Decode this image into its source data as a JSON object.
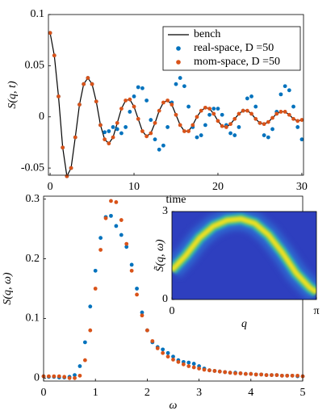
{
  "chart_data": [
    {
      "type": "line",
      "xlabel": "time",
      "ylabel": "S(q, t)",
      "xlim": [
        -0.2,
        30.2
      ],
      "ylim": [
        -0.057,
        0.1
      ],
      "xticks": [
        0,
        10,
        20,
        30
      ],
      "yticks": [
        -0.05,
        0,
        0.05,
        0.1
      ],
      "legend": "northeast",
      "x": [
        0,
        0.5,
        1,
        1.5,
        2,
        2.5,
        3,
        3.5,
        4,
        4.5,
        5,
        5.5,
        6,
        6.5,
        7,
        7.5,
        8,
        8.5,
        9,
        9.5,
        10,
        10.5,
        11,
        11.5,
        12,
        12.5,
        13,
        13.5,
        14,
        14.5,
        15,
        15.5,
        16,
        16.5,
        17,
        17.5,
        18,
        18.5,
        19,
        19.5,
        20,
        20.5,
        21,
        21.5,
        22,
        22.5,
        23,
        23.5,
        24,
        24.5,
        25,
        25.5,
        26,
        26.5,
        27,
        27.5,
        28,
        28.5,
        29,
        29.5,
        30
      ],
      "series": [
        {
          "name": "bench",
          "color": "#000000",
          "style": "line",
          "values": [
            0.082,
            0.06,
            0.02,
            -0.03,
            -0.058,
            -0.05,
            -0.02,
            0.012,
            0.032,
            0.038,
            0.032,
            0.015,
            -0.008,
            -0.022,
            -0.026,
            -0.02,
            -0.006,
            0.008,
            0.016,
            0.017,
            0.01,
            -0.002,
            -0.014,
            -0.019,
            -0.016,
            -0.006,
            0.006,
            0.014,
            0.016,
            0.012,
            0.002,
            -0.008,
            -0.014,
            -0.014,
            -0.008,
            0.0,
            0.006,
            0.009,
            0.008,
            0.003,
            -0.004,
            -0.009,
            -0.01,
            -0.007,
            -0.002,
            0.003,
            0.006,
            0.006,
            0.003,
            -0.002,
            -0.006,
            -0.007,
            -0.005,
            -0.001,
            0.003,
            0.005,
            0.005,
            0.002,
            -0.002,
            -0.004,
            -0.003
          ]
        },
        {
          "name": "real-space, D =50",
          "color": "#0072bd",
          "style": "markers",
          "values": [
            0.082,
            0.06,
            0.02,
            -0.03,
            -0.058,
            -0.05,
            -0.02,
            0.012,
            0.032,
            0.038,
            0.032,
            0.015,
            -0.008,
            -0.015,
            -0.014,
            -0.01,
            -0.012,
            -0.016,
            -0.01,
            0.005,
            0.02,
            0.029,
            0.028,
            0.016,
            -0.003,
            -0.022,
            -0.032,
            -0.028,
            -0.01,
            0.014,
            0.032,
            0.038,
            0.03,
            0.01,
            -0.01,
            -0.02,
            -0.018,
            -0.008,
            0.002,
            0.008,
            0.008,
            0.002,
            -0.008,
            -0.016,
            -0.018,
            -0.01,
            0.006,
            0.018,
            0.02,
            0.01,
            -0.006,
            -0.018,
            -0.02,
            -0.012,
            0.005,
            0.022,
            0.03,
            0.026,
            0.01,
            -0.01,
            -0.022
          ]
        },
        {
          "name": "mom-space, D =50",
          "color": "#d95319",
          "style": "markers",
          "values": [
            0.082,
            0.06,
            0.02,
            -0.03,
            -0.058,
            -0.05,
            -0.02,
            0.012,
            0.032,
            0.038,
            0.032,
            0.015,
            -0.008,
            -0.022,
            -0.026,
            -0.02,
            -0.006,
            0.008,
            0.016,
            0.017,
            0.01,
            -0.002,
            -0.014,
            -0.019,
            -0.016,
            -0.006,
            0.006,
            0.014,
            0.016,
            0.012,
            0.002,
            -0.008,
            -0.014,
            -0.014,
            -0.008,
            0.0,
            0.006,
            0.009,
            0.008,
            0.003,
            -0.004,
            -0.009,
            -0.01,
            -0.007,
            -0.002,
            0.003,
            0.006,
            0.006,
            0.003,
            -0.002,
            -0.006,
            -0.007,
            -0.005,
            -0.001,
            0.003,
            0.005,
            0.005,
            0.002,
            -0.002,
            -0.004,
            -0.003
          ]
        }
      ]
    },
    {
      "type": "line",
      "xlabel": "ω",
      "ylabel": "S(q, ω)",
      "xlim": [
        0,
        5
      ],
      "ylim": [
        -0.005,
        0.305
      ],
      "xticks": [
        0,
        1,
        2,
        3,
        4,
        5
      ],
      "yticks": [
        0,
        0.1,
        0.2,
        0.3
      ],
      "x": [
        0,
        0.1,
        0.2,
        0.3,
        0.4,
        0.5,
        0.6,
        0.7,
        0.8,
        0.9,
        1,
        1.1,
        1.2,
        1.3,
        1.4,
        1.5,
        1.6,
        1.7,
        1.8,
        1.9,
        2,
        2.1,
        2.2,
        2.3,
        2.4,
        2.5,
        2.6,
        2.7,
        2.8,
        2.9,
        3,
        3.1,
        3.2,
        3.3,
        3.4,
        3.5,
        3.6,
        3.7,
        3.8,
        3.9,
        4,
        4.1,
        4.2,
        4.3,
        4.4,
        4.5,
        4.6,
        4.7,
        4.8,
        4.9,
        5
      ],
      "series": [
        {
          "name": "real-space, D =50",
          "color": "#0072bd",
          "style": "markers",
          "values": [
            0.003,
            0.002,
            0.002,
            0.001,
            0.001,
            0.002,
            0.005,
            0.02,
            0.06,
            0.12,
            0.18,
            0.235,
            0.27,
            0.272,
            0.255,
            0.24,
            0.22,
            0.19,
            0.15,
            0.11,
            0.08,
            0.06,
            0.052,
            0.048,
            0.042,
            0.036,
            0.03,
            0.027,
            0.026,
            0.024,
            0.02,
            0.016,
            0.013,
            0.012,
            0.011,
            0.01,
            0.009,
            0.009,
            0.008,
            0.007,
            0.007,
            0.006,
            0.006,
            0.005,
            0.005,
            0.005,
            0.004,
            0.004,
            0.004,
            0.003,
            0.003
          ]
        },
        {
          "name": "mom-space, D =50",
          "color": "#d95319",
          "style": "markers",
          "values": [
            0.003,
            0.003,
            0.003,
            0.003,
            0.002,
            0.0,
            0.0,
            0.004,
            0.03,
            0.08,
            0.15,
            0.215,
            0.268,
            0.297,
            0.295,
            0.265,
            0.225,
            0.18,
            0.14,
            0.105,
            0.08,
            0.062,
            0.05,
            0.042,
            0.036,
            0.031,
            0.027,
            0.023,
            0.02,
            0.018,
            0.016,
            0.014,
            0.013,
            0.012,
            0.011,
            0.01,
            0.009,
            0.008,
            0.008,
            0.007,
            0.007,
            0.006,
            0.006,
            0.005,
            0.005,
            0.005,
            0.004,
            0.004,
            0.004,
            0.004,
            0.003
          ]
        }
      ]
    },
    {
      "type": "heatmap",
      "xlabel": "q",
      "ylabel": "S̃(q, ω)",
      "xlim": [
        0,
        3.1416
      ],
      "ylim": [
        0,
        3
      ],
      "xticks": [
        0,
        {
          "value": 3.1416,
          "label": "π"
        }
      ],
      "yticks": [
        0,
        3
      ],
      "background": "#2e3fbf",
      "colors": [
        "#2f8fe0",
        "#2ac2b0",
        "#a8d23c",
        "#f9e21e"
      ],
      "x": [
        0,
        0.3,
        0.6,
        0.9,
        1.2,
        1.5,
        1.8,
        2.1,
        2.4,
        2.7,
        3.0,
        3.1416
      ],
      "values": [
        1.0,
        1.5,
        2.1,
        2.5,
        2.7,
        2.75,
        2.6,
        2.2,
        1.6,
        0.9,
        0.4,
        0.25
      ]
    }
  ]
}
